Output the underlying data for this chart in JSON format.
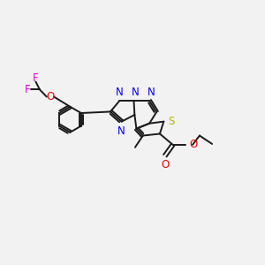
{
  "background_color": "#f2f2f2",
  "bond_color": "#1a1a1a",
  "N_color": "#0000ee",
  "S_color": "#b8b800",
  "O_color": "#ee0000",
  "F_color": "#ee00ee",
  "figsize": [
    3.0,
    3.0
  ],
  "dpi": 100,
  "lw": 1.4,
  "fs": 8.5,
  "xlim": [
    0,
    10
  ],
  "ylim": [
    0,
    10
  ]
}
